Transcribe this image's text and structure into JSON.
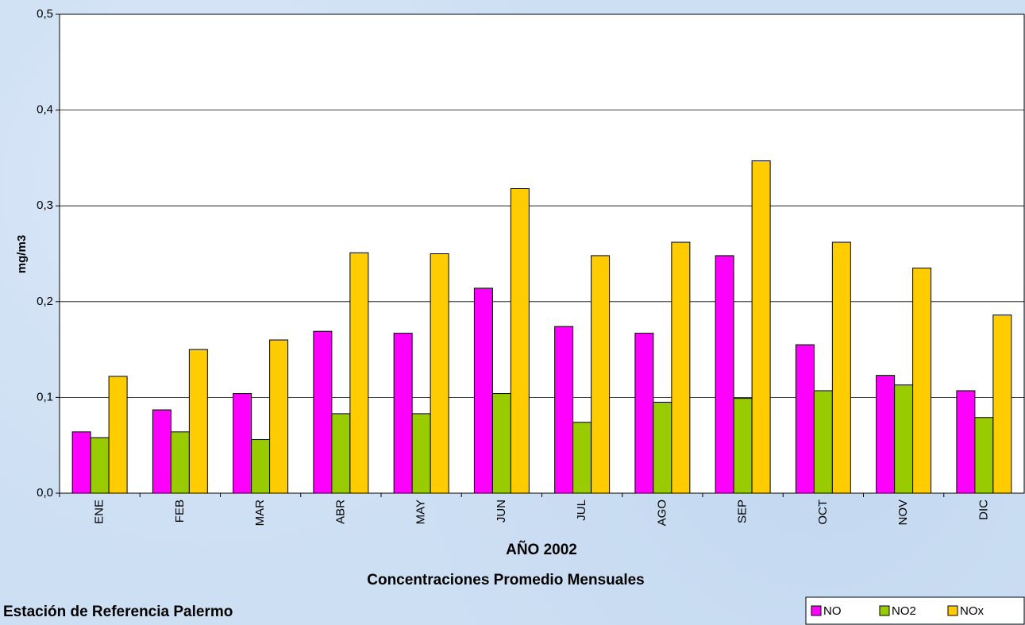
{
  "chart_data": {
    "type": "bar",
    "title": "Concentraciones Promedio Mensuales",
    "subtitle": "Estación de Referencia Palermo",
    "x_label": "AÑO 2002",
    "y_label": "mg/m3",
    "categories": [
      "ENE",
      "FEB",
      "MAR",
      "ABR",
      "MAY",
      "JUN",
      "JUL",
      "AGO",
      "SEP",
      "OCT",
      "NOV",
      "DIC"
    ],
    "series": [
      {
        "name": "NO",
        "color": "#ff00ff",
        "values": [
          0.064,
          0.087,
          0.104,
          0.169,
          0.167,
          0.214,
          0.174,
          0.167,
          0.248,
          0.155,
          0.123,
          0.107
        ]
      },
      {
        "name": "NO2",
        "color": "#99cc00",
        "values": [
          0.058,
          0.064,
          0.056,
          0.083,
          0.083,
          0.104,
          0.074,
          0.095,
          0.099,
          0.107,
          0.113,
          0.079
        ]
      },
      {
        "name": "NOx",
        "color": "#ffcc00",
        "values": [
          0.122,
          0.15,
          0.16,
          0.251,
          0.25,
          0.318,
          0.248,
          0.262,
          0.347,
          0.262,
          0.235,
          0.186
        ]
      }
    ],
    "ylim": [
      0,
      0.5
    ],
    "yticks": [
      {
        "value": 0,
        "label": "0,0"
      },
      {
        "value": 0.1,
        "label": "0,1"
      },
      {
        "value": 0.2,
        "label": "0,2"
      },
      {
        "value": 0.3,
        "label": "0,3"
      },
      {
        "value": 0.4,
        "label": "0,4"
      },
      {
        "value": 0.5,
        "label": "0,5"
      }
    ],
    "grid": true,
    "legend": "bottom-right"
  }
}
